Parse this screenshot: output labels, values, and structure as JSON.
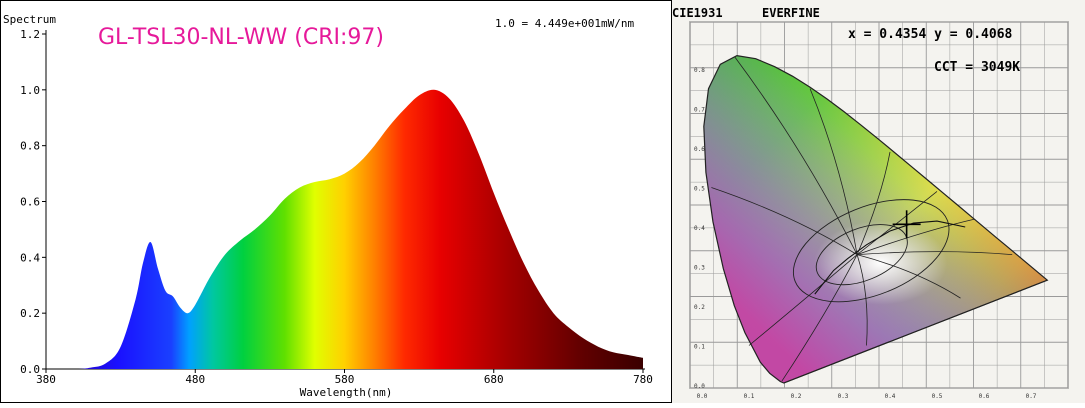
{
  "spectrum": {
    "corner_label": "Spectrum",
    "title": "GL-TSL30-NL-WW (CRI:97)",
    "title_color": "#e6199a",
    "scale_note": "1.0 = 4.449e+001mW/nm",
    "xlabel": "Wavelength(nm)"
  },
  "cie": {
    "title": "CIE1931",
    "brand": "EVERFINE",
    "xy_readout": "x = 0.4354 y = 0.4068",
    "cct_readout": "CCT = 3049K"
  },
  "chart_data": {
    "type": "area",
    "title": "GL-TSL30-NL-WW (CRI:97)",
    "xlabel": "Wavelength(nm)",
    "ylabel": "Spectrum",
    "xlim": [
      380,
      780
    ],
    "ylim": [
      0,
      1.2
    ],
    "x_ticks": [
      380,
      480,
      580,
      680,
      780
    ],
    "y_ticks": [
      0.0,
      0.2,
      0.4,
      0.6,
      0.8,
      1.0,
      1.2
    ],
    "grid": false,
    "fill": "spectral rainbow gradient",
    "series": [
      {
        "x": [
          380,
          400,
          410,
          420,
          430,
          440,
          445,
          450,
          455,
          460,
          465,
          470,
          475,
          480,
          490,
          500,
          510,
          520,
          530,
          540,
          550,
          560,
          570,
          580,
          590,
          600,
          610,
          620,
          630,
          640,
          650,
          660,
          670,
          680,
          690,
          700,
          710,
          720,
          730,
          740,
          750,
          760,
          770,
          780
        ],
        "y": [
          0.0,
          0.0,
          0.005,
          0.02,
          0.08,
          0.25,
          0.38,
          0.455,
          0.36,
          0.28,
          0.26,
          0.22,
          0.2,
          0.23,
          0.33,
          0.41,
          0.46,
          0.5,
          0.55,
          0.61,
          0.65,
          0.67,
          0.68,
          0.7,
          0.74,
          0.8,
          0.87,
          0.93,
          0.98,
          1.0,
          0.97,
          0.89,
          0.77,
          0.63,
          0.5,
          0.38,
          0.28,
          0.2,
          0.15,
          0.11,
          0.08,
          0.06,
          0.05,
          0.04
        ]
      }
    ]
  },
  "cie_chart": {
    "x_ticks": [
      0.0,
      0.1,
      0.2,
      0.3,
      0.4,
      0.5,
      0.6,
      0.7
    ],
    "y_ticks": [
      0.0,
      0.1,
      0.2,
      0.3,
      0.4,
      0.5,
      0.6,
      0.7,
      0.8
    ],
    "marker": {
      "x": 0.4354,
      "y": 0.4068
    }
  }
}
